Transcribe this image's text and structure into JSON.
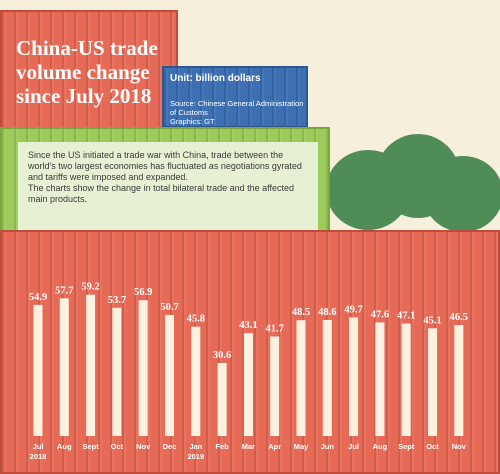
{
  "header": {
    "title": "China-US trade volume change since July 2018",
    "unit": "Unit: billion dollars",
    "source": "Source: Chinese General Administration of Customs",
    "graphics": "Graphics: GT"
  },
  "intro": {
    "p1": "Since the US initiated a trade war with China, trade between the world's two largest economies has fluctuated as negotiations gyrated and tariffs were imposed and expanded.",
    "p2": "The charts show the change in total bilateral trade and the affected main products."
  },
  "colors": {
    "container_red": "#e66a56",
    "container_green": "#9ccb5a",
    "container_blue": "#3d6fb3",
    "bar": "#fff1df",
    "tree": "#4f8c57",
    "text": "#ffffff"
  },
  "chart_data": {
    "type": "bar",
    "title": "China-US trade volume change since July 2018",
    "ylabel": "",
    "xlabel": "",
    "ylim": [
      0,
      62
    ],
    "grid": false,
    "categories": [
      "Jul",
      "Aug",
      "Sept",
      "Oct",
      "Nov",
      "Dec",
      "Jan",
      "Feb",
      "Mar",
      "Apr",
      "May",
      "Jun",
      "Jul",
      "Aug",
      "Sept",
      "Oct",
      "Nov"
    ],
    "year_labels": [
      {
        "text": "2018",
        "index": 0
      },
      {
        "text": "2019",
        "index": 6
      }
    ],
    "values": [
      54.9,
      57.7,
      59.2,
      53.7,
      56.9,
      50.7,
      45.8,
      30.6,
      43.1,
      41.7,
      48.5,
      48.6,
      49.7,
      47.6,
      47.1,
      45.1,
      46.5
    ]
  }
}
